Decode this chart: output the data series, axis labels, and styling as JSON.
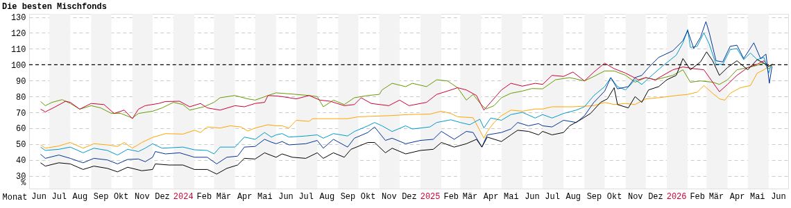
{
  "chart_data": {
    "type": "line",
    "title": "Die besten Mischfonds",
    "xlabel": "Monat",
    "ylabel": "%",
    "xlim": [
      "2023-06-01",
      "2026-06-30"
    ],
    "xticks": [
      {
        "value": "2023-06-15",
        "label": "Jun"
      },
      {
        "value": "2023-07-15",
        "label": "Jul"
      },
      {
        "value": "2023-08-15",
        "label": "Aug"
      },
      {
        "value": "2023-09-15",
        "label": "Sep"
      },
      {
        "value": "2023-10-15",
        "label": "Okt"
      },
      {
        "value": "2023-11-15",
        "label": "Nov"
      },
      {
        "value": "2023-12-15",
        "label": "Dez"
      },
      {
        "value": "2024-01-15",
        "label": "2024"
      },
      {
        "value": "2024-02-15",
        "label": "Feb"
      },
      {
        "value": "2024-03-15",
        "label": "Mär"
      },
      {
        "value": "2024-04-15",
        "label": "Apr"
      },
      {
        "value": "2024-05-15",
        "label": "Mai"
      },
      {
        "value": "2024-06-15",
        "label": "Jun"
      },
      {
        "value": "2024-07-15",
        "label": "Jul"
      },
      {
        "value": "2024-08-15",
        "label": "Aug"
      },
      {
        "value": "2024-09-15",
        "label": "Sep"
      },
      {
        "value": "2024-10-15",
        "label": "Okt"
      },
      {
        "value": "2024-11-15",
        "label": "Nov"
      },
      {
        "value": "2024-12-15",
        "label": "Dez"
      },
      {
        "value": "2025-01-15",
        "label": "2025"
      },
      {
        "value": "2025-02-15",
        "label": "Feb"
      },
      {
        "value": "2025-03-15",
        "label": "Mär"
      },
      {
        "value": "2025-04-15",
        "label": "Apr"
      },
      {
        "value": "2025-05-15",
        "label": "Mai"
      },
      {
        "value": "2025-06-15",
        "label": "Jun"
      },
      {
        "value": "2025-07-15",
        "label": "Jul"
      },
      {
        "value": "2025-08-15",
        "label": "Aug"
      },
      {
        "value": "2025-09-15",
        "label": "Sep"
      },
      {
        "value": "2025-10-15",
        "label": "Okt"
      },
      {
        "value": "2025-11-15",
        "label": "Nov"
      },
      {
        "value": "2025-12-15",
        "label": "Dez"
      },
      {
        "value": "2026-01-15",
        "label": "2026"
      },
      {
        "value": "2026-02-15",
        "label": "Feb"
      },
      {
        "value": "2026-03-15",
        "label": "Mär"
      },
      {
        "value": "2026-04-15",
        "label": "Apr"
      },
      {
        "value": "2026-05-15",
        "label": "Mai"
      },
      {
        "value": "2026-06-15",
        "label": "Jun"
      }
    ],
    "ylim": [
      22,
      132
    ],
    "yticks": [
      30,
      40,
      50,
      60,
      70,
      80,
      90,
      100,
      110,
      120,
      130
    ],
    "grid": "y",
    "bands": [
      {
        "axis": "x",
        "from": "2023-07-01",
        "to": "2023-08-01",
        "color": "#f3f3f3"
      },
      {
        "axis": "x",
        "from": "2023-09-01",
        "to": "2023-10-01",
        "color": "#f3f3f3"
      },
      {
        "axis": "x",
        "from": "2023-11-01",
        "to": "2023-12-01",
        "color": "#f3f3f3"
      },
      {
        "axis": "x",
        "from": "2024-01-01",
        "to": "2024-02-01",
        "color": "#f3f3f3"
      },
      {
        "axis": "x",
        "from": "2024-03-01",
        "to": "2024-04-01",
        "color": "#f3f3f3"
      },
      {
        "axis": "x",
        "from": "2024-05-01",
        "to": "2024-06-01",
        "color": "#f3f3f3"
      },
      {
        "axis": "x",
        "from": "2024-07-01",
        "to": "2024-08-01",
        "color": "#f3f3f3"
      },
      {
        "axis": "x",
        "from": "2024-09-01",
        "to": "2024-10-01",
        "color": "#f3f3f3"
      },
      {
        "axis": "x",
        "from": "2024-11-01",
        "to": "2024-12-01",
        "color": "#f3f3f3"
      },
      {
        "axis": "x",
        "from": "2025-01-01",
        "to": "2025-02-01",
        "color": "#f3f3f3"
      },
      {
        "axis": "x",
        "from": "2025-03-01",
        "to": "2025-04-01",
        "color": "#f3f3f3"
      },
      {
        "axis": "x",
        "from": "2025-05-01",
        "to": "2025-06-01",
        "color": "#f3f3f3"
      },
      {
        "axis": "x",
        "from": "2025-07-01",
        "to": "2025-08-01",
        "color": "#f3f3f3"
      },
      {
        "axis": "x",
        "from": "2025-09-01",
        "to": "2025-10-01",
        "color": "#f3f3f3"
      },
      {
        "axis": "x",
        "from": "2025-11-01",
        "to": "2025-12-01",
        "color": "#f3f3f3"
      },
      {
        "axis": "x",
        "from": "2026-01-01",
        "to": "2026-02-01",
        "color": "#f3f3f3"
      },
      {
        "axis": "x",
        "from": "2026-03-01",
        "to": "2026-04-01",
        "color": "#f3f3f3"
      },
      {
        "axis": "x",
        "from": "2026-05-01",
        "to": "2026-06-01",
        "color": "#f3f3f3"
      }
    ],
    "ref_lines": [
      {
        "axis": "y",
        "value": 100,
        "color": "#000000",
        "line_style": "dashed"
      }
    ],
    "series": [
      {
        "color": "#669900",
        "x": [
          "2023-06-18",
          "2023-06-25",
          "2023-07-05",
          "2023-07-20",
          "2023-08-01",
          "2023-08-15",
          "2023-09-01",
          "2023-09-15",
          "2023-10-01",
          "2023-10-15",
          "2023-11-01",
          "2023-11-10",
          "2023-12-01",
          "2023-12-15",
          "2024-01-01",
          "2024-01-15",
          "2024-01-25",
          "2024-02-15",
          "2024-03-01",
          "2024-03-10",
          "2024-04-01",
          "2024-04-20",
          "2024-05-01",
          "2024-05-20",
          "2024-06-01",
          "2024-06-10",
          "2024-07-01",
          "2024-07-20",
          "2024-08-01",
          "2024-08-10",
          "2024-08-25",
          "2024-09-10",
          "2024-09-25",
          "2024-10-15",
          "2024-11-01",
          "2024-11-05",
          "2024-11-20",
          "2024-12-10",
          "2024-12-20",
          "2025-01-10",
          "2025-01-25",
          "2025-02-10",
          "2025-02-25",
          "2025-03-10",
          "2025-03-20",
          "2025-04-01",
          "2025-04-08",
          "2025-04-20",
          "2025-05-01",
          "2025-05-15",
          "2025-06-01",
          "2025-06-15",
          "2025-07-01",
          "2025-07-20",
          "2025-08-10",
          "2025-09-01",
          "2025-09-15",
          "2025-10-01",
          "2025-10-15",
          "2025-11-01",
          "2025-11-15",
          "2025-12-01",
          "2025-12-15",
          "2026-01-10",
          "2026-01-25",
          "2026-02-05",
          "2026-02-20",
          "2026-03-10",
          "2026-03-20",
          "2026-04-01",
          "2026-04-15",
          "2026-05-01",
          "2026-05-15",
          "2026-05-25",
          "2026-06-01",
          "2026-06-07"
        ],
        "values": [
          76.8,
          74.2,
          76.3,
          78,
          75.6,
          72,
          74.2,
          72.8,
          69.3,
          69.3,
          66.4,
          69.3,
          70.7,
          72.8,
          76.3,
          74.9,
          71.4,
          73.5,
          76.3,
          79.2,
          80.6,
          78.5,
          77.7,
          80.6,
          82.3,
          82,
          81.3,
          80.6,
          79.9,
          73.5,
          77.7,
          74.9,
          79.2,
          80.6,
          81.3,
          84.1,
          88.3,
          86.2,
          88.3,
          86.2,
          90.5,
          89.8,
          85.5,
          77.7,
          81.3,
          74.9,
          72.1,
          74.2,
          79.2,
          82,
          83.4,
          85,
          84.8,
          90.5,
          91.9,
          89.8,
          92.6,
          96.1,
          96.1,
          93.3,
          89,
          91.9,
          90.5,
          93.3,
          96.8,
          89,
          89.8,
          89,
          87.6,
          90.5,
          96.8,
          98.2,
          99.6,
          101,
          97.5,
          100
        ]
      },
      {
        "color": "#cc0033",
        "x": [
          "2023-06-18",
          "2023-06-25",
          "2023-07-10",
          "2023-07-25",
          "2023-08-01",
          "2023-08-15",
          "2023-09-01",
          "2023-09-20",
          "2023-10-05",
          "2023-10-20",
          "2023-11-01",
          "2023-11-10",
          "2023-11-20",
          "2023-12-10",
          "2023-12-20",
          "2024-01-10",
          "2024-01-25",
          "2024-02-10",
          "2024-02-20",
          "2024-03-10",
          "2024-04-01",
          "2024-04-15",
          "2024-05-01",
          "2024-05-15",
          "2024-05-20",
          "2024-06-01",
          "2024-06-10",
          "2024-07-01",
          "2024-07-20",
          "2024-08-05",
          "2024-08-20",
          "2024-09-10",
          "2024-09-25",
          "2024-10-05",
          "2024-10-20",
          "2024-11-15",
          "2024-12-01",
          "2024-12-15",
          "2025-01-10",
          "2025-01-25",
          "2025-02-10",
          "2025-02-25",
          "2025-03-10",
          "2025-03-25",
          "2025-04-05",
          "2025-04-15",
          "2025-05-01",
          "2025-05-15",
          "2025-06-01",
          "2025-06-20",
          "2025-07-01",
          "2025-07-15",
          "2025-08-01",
          "2025-08-15",
          "2025-09-01",
          "2025-09-15",
          "2025-10-01",
          "2025-10-15",
          "2025-11-01",
          "2025-11-20",
          "2025-12-01",
          "2025-12-15",
          "2026-01-10",
          "2026-01-25",
          "2026-02-10",
          "2026-02-25",
          "2026-03-10",
          "2026-03-20",
          "2026-04-01",
          "2026-04-15",
          "2026-05-01",
          "2026-05-15",
          "2026-05-25",
          "2026-06-01",
          "2026-06-07"
        ],
        "values": [
          72,
          70.3,
          73.5,
          77,
          76.3,
          72,
          75.6,
          74.9,
          69.3,
          71.4,
          66,
          72,
          74.2,
          75.6,
          76.8,
          77,
          73.5,
          75.6,
          72.8,
          71.4,
          74.2,
          73.5,
          75.6,
          76.3,
          80.6,
          80.3,
          79.9,
          78.5,
          80.6,
          77.7,
          77,
          74.2,
          74.9,
          79.2,
          75.6,
          74.2,
          77.7,
          74.2,
          76.3,
          81.3,
          83.4,
          85.5,
          84.1,
          80.6,
          71.4,
          76.3,
          84.1,
          88.3,
          86.5,
          88.3,
          87.6,
          93.3,
          92.6,
          95.4,
          89.8,
          95.4,
          101,
          97.5,
          94.7,
          90.5,
          91.9,
          90.5,
          96.8,
          98.6,
          97.5,
          96.8,
          89,
          83,
          87.6,
          93.3,
          98.2,
          100.3,
          102.5,
          99,
          100.3
        ]
      },
      {
        "color": "#ffa500",
        "x": [
          "2023-06-18",
          "2023-06-25",
          "2023-07-15",
          "2023-08-01",
          "2023-08-20",
          "2023-09-05",
          "2023-09-25",
          "2023-10-10",
          "2023-10-20",
          "2023-11-01",
          "2023-11-15",
          "2023-12-01",
          "2023-12-20",
          "2024-01-15",
          "2024-02-01",
          "2024-02-10",
          "2024-02-20",
          "2024-03-10",
          "2024-03-25",
          "2024-04-10",
          "2024-04-20",
          "2024-05-01",
          "2024-05-20",
          "2024-06-01",
          "2024-06-10",
          "2024-06-20",
          "2024-07-01",
          "2024-07-20",
          "2024-07-25",
          "2024-09-15",
          "2024-10-01",
          "2024-11-15",
          "2024-12-15",
          "2025-01-15",
          "2025-02-01",
          "2025-02-15",
          "2025-02-25",
          "2025-03-20",
          "2025-04-05",
          "2025-04-10",
          "2025-04-20",
          "2025-05-01",
          "2025-05-15",
          "2025-06-01",
          "2025-06-20",
          "2025-07-01",
          "2025-07-15",
          "2025-08-15",
          "2025-09-15",
          "2025-10-01",
          "2025-10-15",
          "2025-11-01",
          "2025-11-15",
          "2025-12-01",
          "2025-12-20",
          "2026-01-15",
          "2026-02-01",
          "2026-02-15",
          "2026-02-25",
          "2026-03-10",
          "2026-03-20",
          "2026-03-28",
          "2026-04-05",
          "2026-04-20",
          "2026-05-05",
          "2026-05-15",
          "2026-05-25",
          "2026-06-01",
          "2026-06-07"
        ],
        "values": [
          49.5,
          47.4,
          48.8,
          51,
          47.4,
          50.2,
          49.5,
          48.5,
          51,
          47.4,
          51,
          54.2,
          56.6,
          56.3,
          58.7,
          57.3,
          60.8,
          60.1,
          61.5,
          60.8,
          58.2,
          60.1,
          62.2,
          61.5,
          61.5,
          60.1,
          65,
          64.3,
          66,
          66,
          67.2,
          67.9,
          68.6,
          68.9,
          70.7,
          69.3,
          67.2,
          66.6,
          53.7,
          57.9,
          63.6,
          67.9,
          71.4,
          70.7,
          72.1,
          72.1,
          73.5,
          73.5,
          74.2,
          76.3,
          74.9,
          75.6,
          74.9,
          78.5,
          79.2,
          80.6,
          81.3,
          82.7,
          86.9,
          82,
          78.5,
          77.7,
          82,
          85.5,
          86.9,
          94.7,
          96.8,
          99,
          100.3
        ]
      },
      {
        "color": "#0099cc",
        "x": [
          "2023-06-18",
          "2023-06-25",
          "2023-07-15",
          "2023-08-01",
          "2023-08-20",
          "2023-09-05",
          "2023-09-25",
          "2023-10-10",
          "2023-10-25",
          "2023-11-10",
          "2023-11-20",
          "2023-12-01",
          "2023-12-15",
          "2024-01-15",
          "2024-02-01",
          "2024-02-20",
          "2024-03-01",
          "2024-03-10",
          "2024-04-01",
          "2024-04-15",
          "2024-05-01",
          "2024-05-15",
          "2024-05-25",
          "2024-06-01",
          "2024-06-10",
          "2024-06-20",
          "2024-07-15",
          "2024-08-01",
          "2024-08-10",
          "2024-08-25",
          "2024-09-15",
          "2024-09-25",
          "2024-10-15",
          "2024-10-25",
          "2024-11-05",
          "2024-11-20",
          "2024-12-10",
          "2024-12-20",
          "2025-01-15",
          "2025-01-25",
          "2025-02-15",
          "2025-03-01",
          "2025-03-15",
          "2025-03-30",
          "2025-04-05",
          "2025-04-15",
          "2025-05-01",
          "2025-05-15",
          "2025-06-01",
          "2025-06-20",
          "2025-07-01",
          "2025-07-15",
          "2025-08-01",
          "2025-08-20",
          "2025-09-01",
          "2025-09-15",
          "2025-10-01",
          "2025-10-10",
          "2025-10-20",
          "2025-11-01",
          "2025-11-15",
          "2025-11-25",
          "2025-12-10",
          "2025-12-25",
          "2026-01-15",
          "2026-01-25",
          "2026-02-01",
          "2026-02-05",
          "2026-02-15",
          "2026-02-25",
          "2026-03-05",
          "2026-03-15",
          "2026-03-25",
          "2026-04-05",
          "2026-04-15",
          "2026-04-25",
          "2026-05-05",
          "2026-05-15",
          "2026-05-25",
          "2026-06-01",
          "2026-06-05"
        ],
        "values": [
          48.1,
          46,
          46.7,
          48.1,
          44.5,
          47.4,
          46,
          43.1,
          46.7,
          45.3,
          47.4,
          50.2,
          47.4,
          48.1,
          46.4,
          46,
          43.8,
          48.1,
          48.1,
          54.4,
          53,
          57.3,
          54.4,
          55.8,
          56.6,
          54.4,
          55.1,
          55.8,
          53.7,
          56.6,
          55.1,
          57.9,
          61.5,
          63.6,
          61.5,
          57.9,
          61.5,
          59.5,
          60.8,
          63.6,
          65.3,
          63.6,
          62.2,
          65.7,
          60.1,
          66.4,
          65,
          68.6,
          70,
          66.4,
          68.6,
          66.4,
          69.3,
          71.4,
          73.5,
          80.6,
          86.2,
          91.9,
          86.2,
          84.1,
          90.5,
          87.6,
          93.3,
          98.9,
          106,
          113.8,
          122.2,
          110.9,
          111.6,
          120.1,
          112.9,
          100.3,
          100.3,
          109.5,
          110.2,
          103.2,
          107.4,
          103.2,
          104.6,
          94.7,
          100.3
        ]
      },
      {
        "color": "#003399",
        "x": [
          "2023-06-18",
          "2023-06-25",
          "2023-07-15",
          "2023-08-01",
          "2023-08-20",
          "2023-09-05",
          "2023-09-25",
          "2023-10-10",
          "2023-10-25",
          "2023-11-10",
          "2023-11-20",
          "2023-12-01",
          "2023-12-05",
          "2023-12-20",
          "2024-01-10",
          "2024-02-01",
          "2024-02-20",
          "2024-03-05",
          "2024-03-20",
          "2024-04-05",
          "2024-04-15",
          "2024-05-01",
          "2024-05-15",
          "2024-05-25",
          "2024-06-01",
          "2024-06-10",
          "2024-06-20",
          "2024-07-15",
          "2024-08-01",
          "2024-08-10",
          "2024-08-25",
          "2024-09-15",
          "2024-09-25",
          "2024-10-15",
          "2024-10-25",
          "2024-11-10",
          "2024-11-20",
          "2024-12-10",
          "2025-01-01",
          "2025-01-20",
          "2025-02-01",
          "2025-02-20",
          "2025-03-10",
          "2025-03-20",
          "2025-04-02",
          "2025-04-10",
          "2025-05-01",
          "2025-05-15",
          "2025-05-25",
          "2025-06-10",
          "2025-06-25",
          "2025-07-01",
          "2025-07-15",
          "2025-08-01",
          "2025-08-20",
          "2025-09-01",
          "2025-09-15",
          "2025-10-01",
          "2025-10-10",
          "2025-10-20",
          "2025-11-05",
          "2025-11-15",
          "2025-11-25",
          "2025-12-05",
          "2025-12-20",
          "2026-01-10",
          "2026-01-25",
          "2026-02-01",
          "2026-02-10",
          "2026-02-20",
          "2026-02-28",
          "2026-03-05",
          "2026-03-15",
          "2026-03-25",
          "2026-04-05",
          "2026-04-15",
          "2026-04-25",
          "2026-05-10",
          "2026-05-20",
          "2026-05-28",
          "2026-06-02",
          "2026-06-06"
        ],
        "values": [
          43.6,
          41,
          43.1,
          41,
          38.2,
          41,
          40,
          37.5,
          40.3,
          40.6,
          38.9,
          41.7,
          45.3,
          43.8,
          44.5,
          41.7,
          41.7,
          37.5,
          41.7,
          42.4,
          48.1,
          48.5,
          53,
          51.2,
          50.2,
          51.6,
          49.5,
          50.2,
          52.3,
          47.4,
          53,
          48.1,
          53.7,
          57.3,
          60.8,
          52.3,
          53.7,
          50.2,
          52.3,
          53,
          58,
          53,
          58,
          57.3,
          48.1,
          55.8,
          57.3,
          59.5,
          63.6,
          61.5,
          62.9,
          61.5,
          60.8,
          65,
          63.6,
          67.9,
          76.3,
          83.4,
          91.9,
          84.8,
          86.2,
          91.9,
          93.3,
          98.2,
          104.6,
          108.8,
          115.2,
          121.5,
          110.2,
          117.3,
          127.2,
          120.1,
          102.5,
          101.8,
          111.6,
          112.3,
          103.9,
          113.8,
          103.9,
          106.7,
          88.3,
          99
        ]
      },
      {
        "color": "#000000",
        "x": [
          "2023-06-18",
          "2023-06-25",
          "2023-07-15",
          "2023-08-01",
          "2023-08-20",
          "2023-09-05",
          "2023-09-25",
          "2023-10-10",
          "2023-10-25",
          "2023-11-15",
          "2023-12-01",
          "2023-12-05",
          "2023-12-25",
          "2024-01-15",
          "2024-02-01",
          "2024-02-20",
          "2024-03-05",
          "2024-03-20",
          "2024-04-05",
          "2024-04-15",
          "2024-05-01",
          "2024-05-15",
          "2024-05-25",
          "2024-06-01",
          "2024-06-10",
          "2024-06-25",
          "2024-07-15",
          "2024-08-01",
          "2024-08-10",
          "2024-08-25",
          "2024-09-10",
          "2024-09-20",
          "2024-10-15",
          "2024-10-25",
          "2024-11-10",
          "2024-11-20",
          "2024-12-10",
          "2025-01-01",
          "2025-01-20",
          "2025-02-01",
          "2025-02-20",
          "2025-03-10",
          "2025-03-25",
          "2025-04-02",
          "2025-04-10",
          "2025-05-01",
          "2025-05-15",
          "2025-05-25",
          "2025-06-10",
          "2025-06-25",
          "2025-07-01",
          "2025-07-15",
          "2025-08-01",
          "2025-08-10",
          "2025-08-25",
          "2025-09-10",
          "2025-09-25",
          "2025-10-05",
          "2025-10-15",
          "2025-10-20",
          "2025-11-05",
          "2025-11-15",
          "2025-11-25",
          "2025-12-05",
          "2025-12-20",
          "2026-01-01",
          "2026-01-15",
          "2026-01-25",
          "2026-02-05",
          "2026-02-20",
          "2026-03-01",
          "2026-03-10",
          "2026-03-20",
          "2026-04-01",
          "2026-04-15",
          "2026-05-01",
          "2026-05-15",
          "2026-05-25",
          "2026-06-01",
          "2026-06-07"
        ],
        "values": [
          38.2,
          36.1,
          38.2,
          37.5,
          34,
          36.1,
          34.7,
          32.5,
          35.4,
          33.2,
          34,
          37.5,
          36.8,
          36.8,
          34,
          34,
          31.1,
          34.7,
          36.8,
          41,
          40.6,
          44.5,
          42.8,
          41.7,
          43.8,
          41.7,
          41,
          44.5,
          41,
          44.5,
          41.7,
          46.7,
          51,
          51,
          44.5,
          47.4,
          43.8,
          46,
          46.7,
          51,
          48.1,
          50.2,
          53,
          48.1,
          54.4,
          51.6,
          55.8,
          58.7,
          58,
          55.8,
          58,
          55.8,
          57.3,
          61.5,
          65,
          69.3,
          76.3,
          78.5,
          85.5,
          74.9,
          72.8,
          79.9,
          76.3,
          84.1,
          86.2,
          90.5,
          93.3,
          103.9,
          96.8,
          101.8,
          108.1,
          102.5,
          93.3,
          98.2,
          102.5,
          96.8,
          103.2,
          101,
          99,
          100.3
        ]
      }
    ]
  }
}
